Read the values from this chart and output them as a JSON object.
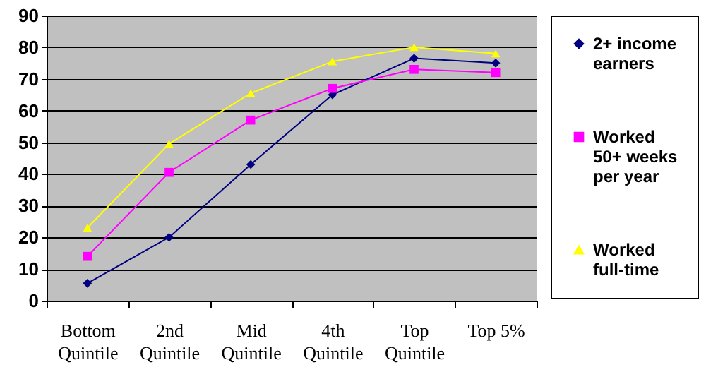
{
  "chart_data": {
    "type": "line",
    "categories": [
      "Bottom Quintile",
      "2nd Quintile",
      "Mid Quintile",
      "4th Quintile",
      "Top Quintile",
      "Top 5%"
    ],
    "ylim": [
      0,
      90
    ],
    "yticks": [
      0,
      10,
      20,
      30,
      40,
      50,
      60,
      70,
      80,
      90
    ],
    "grid": "y",
    "legend": "right",
    "series": [
      {
        "name": "2+ income earners",
        "color": "#000080",
        "marker": "diamond",
        "values": [
          5.5,
          20,
          43,
          65,
          76.5,
          75
        ]
      },
      {
        "name": "Worked 50+ weeks per year",
        "color": "#ff00ff",
        "marker": "square",
        "values": [
          14,
          40.5,
          57,
          67,
          73,
          72
        ]
      },
      {
        "name": "Worked full-time",
        "color": "#ffff00",
        "marker": "triangle",
        "values": [
          23,
          49.5,
          65.5,
          75.5,
          80,
          78
        ]
      }
    ]
  }
}
